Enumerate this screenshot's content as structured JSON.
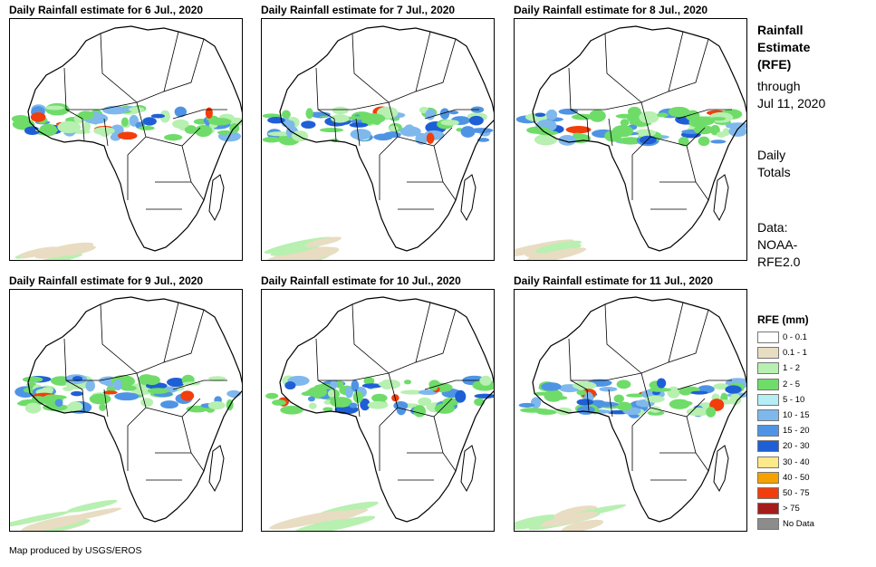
{
  "panels": [
    {
      "title": "Daily Rainfall estimate for 6 Jul., 2020"
    },
    {
      "title": "Daily Rainfall estimate for 7 Jul., 2020"
    },
    {
      "title": "Daily Rainfall estimate for 8 Jul., 2020"
    },
    {
      "title": "Daily Rainfall estimate for 9 Jul., 2020"
    },
    {
      "title": "Daily Rainfall estimate for 10 Jul., 2020"
    },
    {
      "title": "Daily Rainfall estimate for 11 Jul., 2020"
    }
  ],
  "sidebar": {
    "title_line1": "Rainfall",
    "title_line2": "Estimate",
    "title_line3": "(RFE)",
    "through_label": "through",
    "through_date": "Jul 11, 2020",
    "totals_line1": "Daily",
    "totals_line2": "Totals",
    "data_line1": "Data:",
    "data_line2": "NOAA-",
    "data_line3": "RFE2.0"
  },
  "legend": {
    "title": "RFE (mm)",
    "items": [
      {
        "label": "0 - 0.1",
        "color": "#ffffff"
      },
      {
        "label": "0.1 - 1",
        "color": "#e8dcc2"
      },
      {
        "label": "1 - 2",
        "color": "#b7f0b0"
      },
      {
        "label": "2 - 5",
        "color": "#6fdc6a"
      },
      {
        "label": "5 - 10",
        "color": "#b4eef4"
      },
      {
        "label": "10 - 15",
        "color": "#7fb8ec"
      },
      {
        "label": "15 - 20",
        "color": "#4f94e4"
      },
      {
        "label": "20 - 30",
        "color": "#1f5fd6"
      },
      {
        "label": "30 - 40",
        "color": "#fde98a"
      },
      {
        "label": "40 - 50",
        "color": "#f5a100"
      },
      {
        "label": "50 - 75",
        "color": "#f23d0c"
      },
      {
        "label": "> 75",
        "color": "#a41c1c"
      },
      {
        "label": "No Data",
        "color": "#8c8c8c"
      }
    ]
  },
  "credit": "Map produced by USGS/EROS"
}
